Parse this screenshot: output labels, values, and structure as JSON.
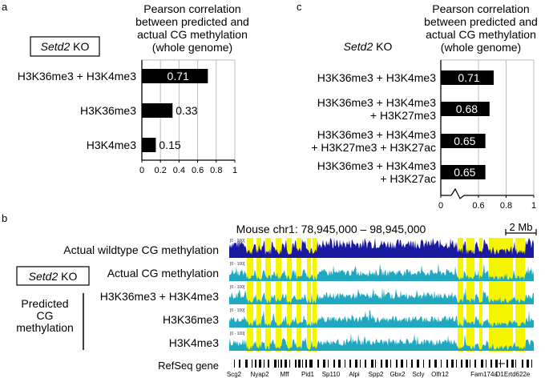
{
  "panel_letters": {
    "a": "a",
    "b": "b",
    "c": "c"
  },
  "chart_data": [
    {
      "type": "bar",
      "orientation": "horizontal",
      "panel": "a",
      "title": [
        "Pearson correlation",
        "between predicted and",
        "actual CG methylation",
        "(whole genome)"
      ],
      "box_label": {
        "italic": "Setd2",
        "rest": " KO"
      },
      "categories": [
        [
          "H3K36me3 + H3K4me3"
        ],
        [
          "H3K36me3"
        ],
        [
          "H3K4me3"
        ]
      ],
      "values": [
        0.71,
        0.33,
        0.15
      ],
      "value_labels": [
        "0.71",
        "0.33",
        "0.15"
      ],
      "xlim": [
        0,
        1
      ],
      "xticks": [
        "0",
        "0.2",
        "0.4",
        "0.6",
        "0.8",
        "1"
      ],
      "xtick_values": [
        0,
        0.2,
        0.4,
        0.6,
        0.8,
        1
      ],
      "bar_color": "#000000",
      "grid": true
    },
    {
      "type": "bar",
      "orientation": "horizontal",
      "panel": "c",
      "title": [
        "Pearson correlation",
        "between predicted and",
        "actual CG methylation",
        "(whole genome)"
      ],
      "box_label": {
        "italic": "Setd2",
        "rest": " KO"
      },
      "categories": [
        [
          "H3K36me3 + H3K4me3"
        ],
        [
          "H3K36me3 + H3K4me3",
          "+ H3K27me3"
        ],
        [
          "H3K36me3 + H3K4me3",
          "+ H3K27me3 + H3K27ac"
        ],
        [
          "H3K36me3 + H3K4me3",
          "+ H3K27ac"
        ]
      ],
      "values": [
        0.71,
        0.68,
        0.65,
        0.65
      ],
      "value_labels": [
        "0.71",
        "0.68",
        "0.65",
        "0.65"
      ],
      "xlim": [
        0,
        1
      ],
      "axis_break": true,
      "xticks": [
        "0",
        "0.6",
        "0.8",
        "1"
      ],
      "xtick_values": [
        0,
        0.6,
        0.8,
        1
      ],
      "bar_color": "#000000",
      "grid": true
    },
    {
      "type": "area",
      "panel": "b",
      "title": "Mouse chr1: 78,945,000 – 98,945,000",
      "scale_bar": "2 Mb",
      "track_range": "[0 - 100]",
      "tracks": [
        {
          "name": "Actual wildtype CG methylation",
          "color": "#1a1aa0"
        },
        {
          "name": "Actual CG methylation",
          "color": "#1fa8c0"
        },
        {
          "name": "H3K36me3 + H3K4me3",
          "color": "#1fa8c0"
        },
        {
          "name": "H3K36me3",
          "color": "#1fa8c0"
        },
        {
          "name": "H3K4me3",
          "color": "#1fa8c0"
        }
      ],
      "highlight_color": "#f5f500",
      "group_box_label": {
        "italic": "Setd2",
        "rest": " KO"
      },
      "group_label": [
        "Predicted",
        "CG",
        "methylation"
      ],
      "refseq_label": "RefSeq gene",
      "genes": [
        "Scg2",
        "Nyap2",
        "Mff",
        "Pid1",
        "Sp110",
        "Alpi",
        "Spp2",
        "Gbx2",
        "Scly",
        "Olfr12",
        "Fam174a",
        "D1Ertd622e"
      ]
    }
  ]
}
